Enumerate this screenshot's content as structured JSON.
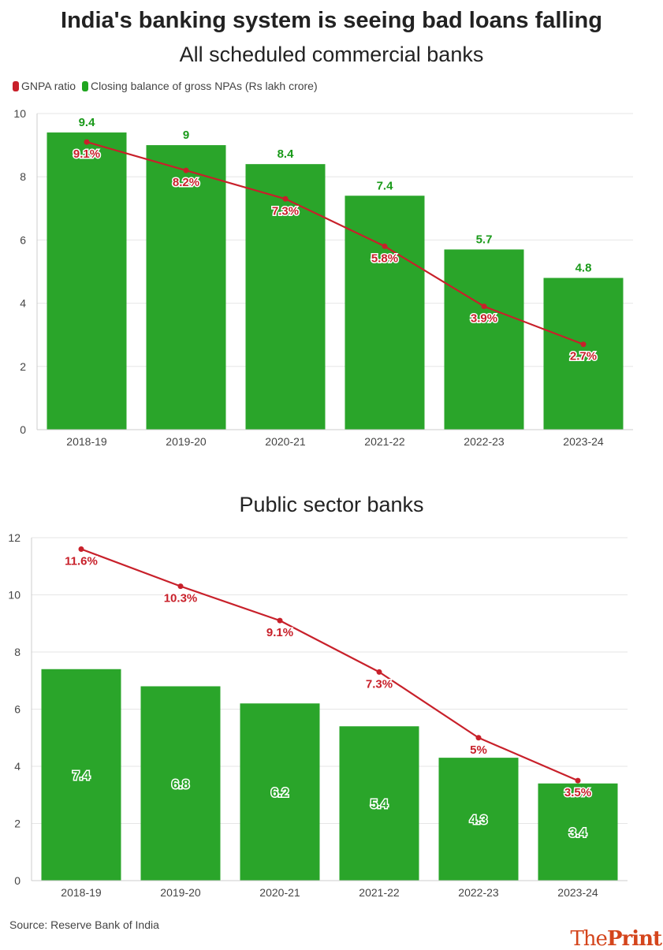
{
  "title": "India's banking system is seeing bad loans falling",
  "legend": [
    {
      "label": "GNPA ratio",
      "color": "#c8202a"
    },
    {
      "label": "Closing balance of gross NPAs (Rs lakh crore)",
      "color": "#1fa51f"
    }
  ],
  "source": "Source: Reserve Bank of India",
  "logo": {
    "part1": "The",
    "part2": "Print"
  },
  "colors": {
    "bar": "#2aa52a",
    "line": "#c8202a",
    "bar_label": "#1a9a1a",
    "grid": "#e6e6e6"
  },
  "chart_data": [
    {
      "type": "bar",
      "title": "All scheduled commercial banks",
      "categories": [
        "2018-19",
        "2019-20",
        "2020-21",
        "2021-22",
        "2022-23",
        "2023-24"
      ],
      "ylim": [
        0,
        10
      ],
      "yticks": [
        0,
        2,
        4,
        6,
        8,
        10
      ],
      "grid": true,
      "legend_placement": "top-left",
      "series": [
        {
          "name": "Closing balance of gross NPAs (Rs lakh crore)",
          "type": "bar",
          "values": [
            9.4,
            9,
            8.4,
            7.4,
            5.7,
            4.8
          ],
          "labels": [
            "9.4",
            "9",
            "8.4",
            "7.4",
            "5.7",
            "4.8"
          ],
          "label_position": "above"
        },
        {
          "name": "GNPA ratio",
          "type": "line",
          "values": [
            9.1,
            8.2,
            7.3,
            5.8,
            3.9,
            2.7
          ],
          "labels": [
            "9.1%",
            "8.2%",
            "7.3%",
            "5.8%",
            "3.9%",
            "2.7%"
          ]
        }
      ]
    },
    {
      "type": "bar",
      "title": "Public sector banks",
      "categories": [
        "2018-19",
        "2019-20",
        "2020-21",
        "2021-22",
        "2022-23",
        "2023-24"
      ],
      "ylim": [
        0,
        12
      ],
      "yticks": [
        0,
        2,
        4,
        6,
        8,
        10,
        12
      ],
      "grid": true,
      "series": [
        {
          "name": "Closing balance of gross NPAs (Rs lakh crore)",
          "type": "bar",
          "values": [
            7.4,
            6.8,
            6.2,
            5.4,
            4.3,
            3.4
          ],
          "labels": [
            "7.4",
            "6.8",
            "6.2",
            "5.4",
            "4.3",
            "3.4"
          ],
          "label_position": "inside"
        },
        {
          "name": "GNPA ratio",
          "type": "line",
          "values": [
            11.6,
            10.3,
            9.1,
            7.3,
            5,
            3.5
          ],
          "labels": [
            "11.6%",
            "10.3%",
            "9.1%",
            "7.3%",
            "5%",
            "3.5%"
          ]
        }
      ]
    }
  ]
}
